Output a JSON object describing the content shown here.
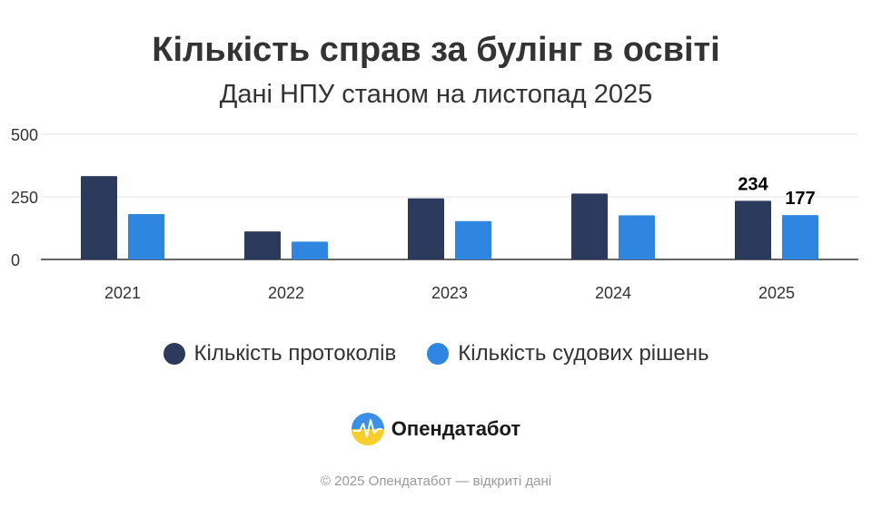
{
  "chart_data": {
    "type": "bar",
    "title": "Кількість справ за булінг в освіті",
    "subtitle": "Дані НПУ станом на листопад 2025",
    "categories": [
      "2021",
      "2022",
      "2023",
      "2024",
      "2025"
    ],
    "series": [
      {
        "name": "Кількість протоколів",
        "color": "#2c3a5e",
        "values": [
          333,
          112,
          244,
          263,
          234
        ]
      },
      {
        "name": "Кількість судових рішень",
        "color": "#2f86e0",
        "values": [
          181,
          71,
          153,
          176,
          177
        ]
      }
    ],
    "data_labels": [
      {
        "series": 0,
        "index": 4,
        "text": "234"
      },
      {
        "series": 1,
        "index": 4,
        "text": "177"
      }
    ],
    "yticks": [
      "0",
      "250",
      "500"
    ],
    "ylim": [
      0,
      500
    ],
    "grid": true,
    "legend_position": "bottom"
  },
  "legend": {
    "items": [
      {
        "label": "Кількість протоколів",
        "color": "#2c3a5e"
      },
      {
        "label": "Кількість судових рішень",
        "color": "#2f86e0"
      }
    ]
  },
  "brand": {
    "name": "Опендатабот",
    "icon": "opendatabot-logo-icon"
  },
  "footer": {
    "text": "© 2025 Опендатабот — відкриті дані"
  }
}
